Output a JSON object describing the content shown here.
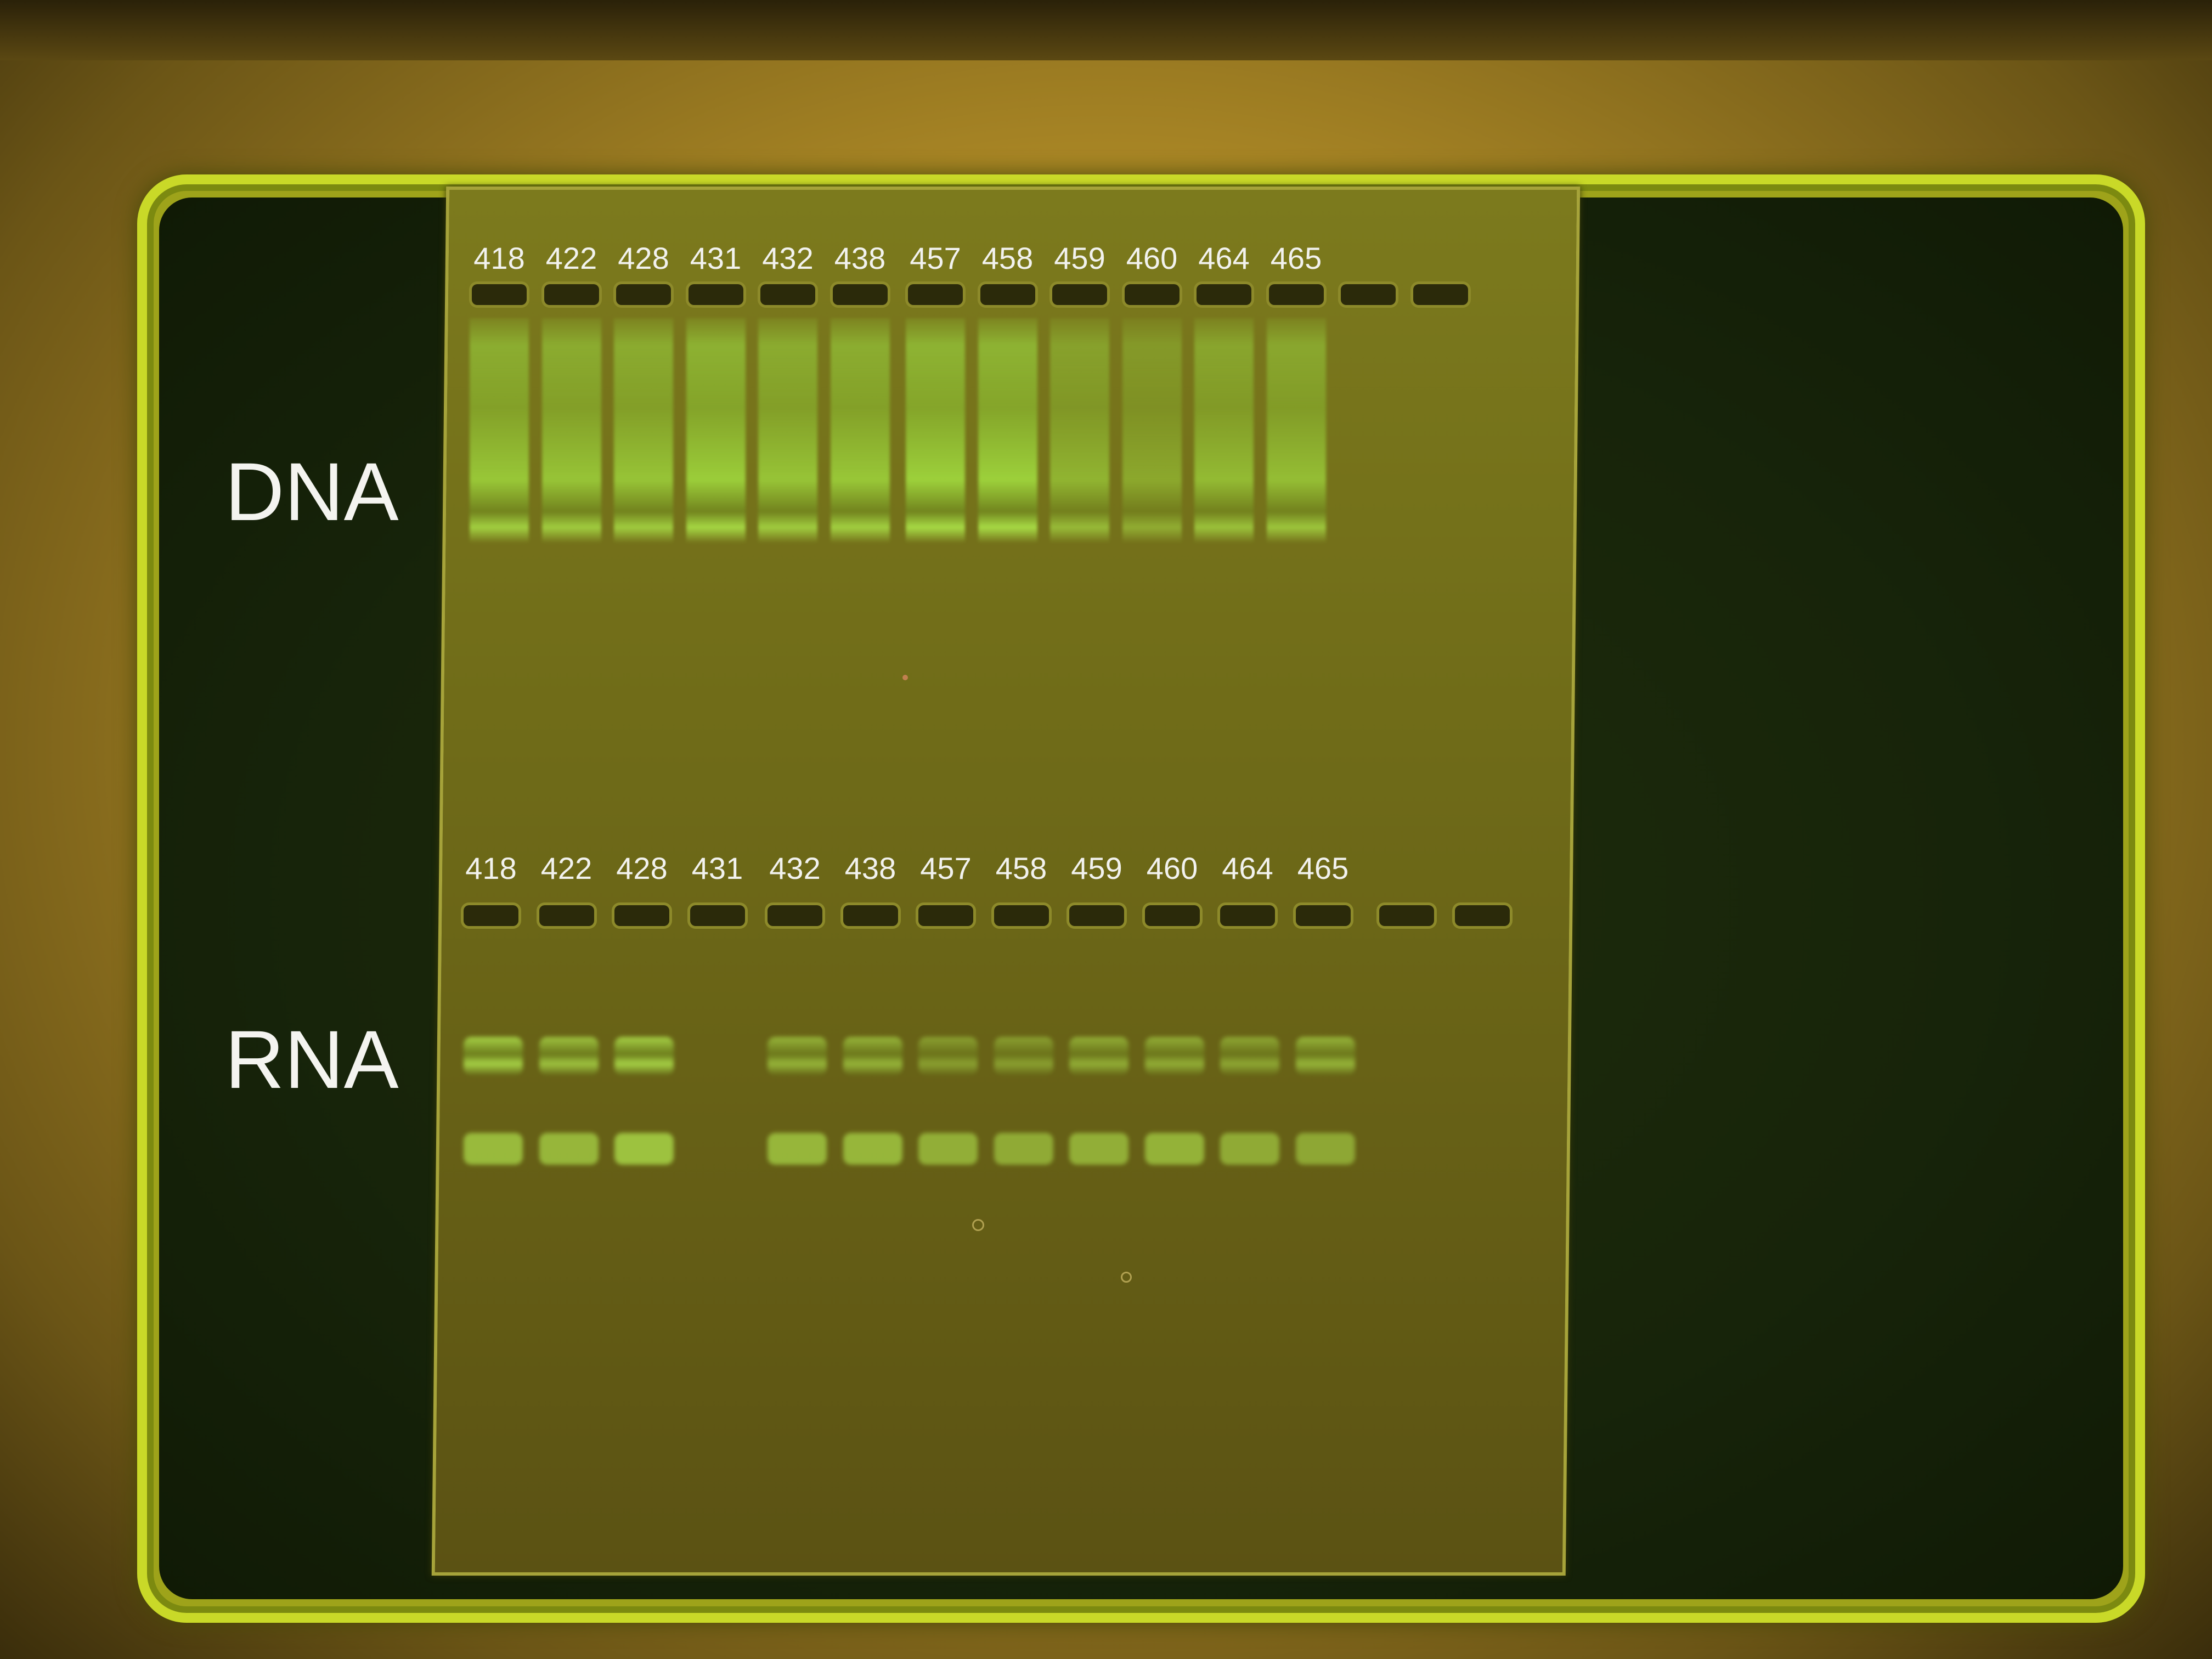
{
  "labels": {
    "dna": "DNA",
    "rna": "RNA"
  },
  "lanes_top": [
    "418",
    "422",
    "428",
    "431",
    "432",
    "438",
    "457",
    "458",
    "459",
    "460",
    "464",
    "465"
  ],
  "lanes_bottom": [
    "418",
    "422",
    "428",
    "431",
    "432",
    "438",
    "457",
    "458",
    "459",
    "460",
    "464",
    "465"
  ],
  "dna_intensity": [
    0.85,
    0.8,
    0.8,
    0.95,
    0.8,
    0.85,
    1.0,
    1.0,
    0.55,
    0.35,
    0.65,
    0.7
  ],
  "rna_upper_intensity": [
    0.8,
    0.7,
    0.8,
    0.0,
    0.6,
    0.6,
    0.45,
    0.45,
    0.55,
    0.55,
    0.5,
    0.6
  ],
  "rna_lower_intensity": [
    0.8,
    0.75,
    0.9,
    0.0,
    0.75,
    0.75,
    0.65,
    0.6,
    0.65,
    0.7,
    0.6,
    0.55
  ],
  "colors": {
    "label_text": "#f2f2ee",
    "band_glow": "#b6ee52"
  }
}
